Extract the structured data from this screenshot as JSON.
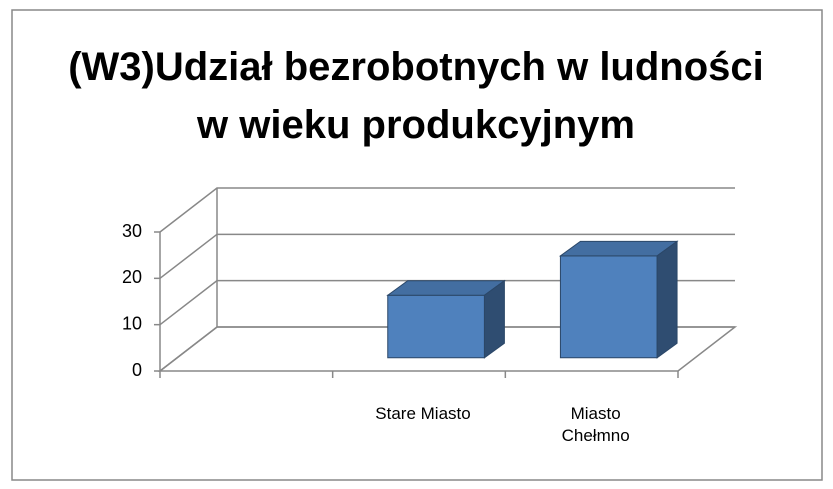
{
  "chart_data": {
    "type": "bar3d",
    "title": "(W3)Udział bezrobotnych w ludności w wieku produkcyjnym",
    "categories": [
      null,
      "Stare Miasto",
      "Miasto Chełmno"
    ],
    "values": [
      null,
      13.5,
      22
    ],
    "color": "#4f81bd",
    "ylim": [
      0,
      30
    ],
    "yticks": [
      0,
      10,
      20,
      30
    ],
    "grid": true
  }
}
